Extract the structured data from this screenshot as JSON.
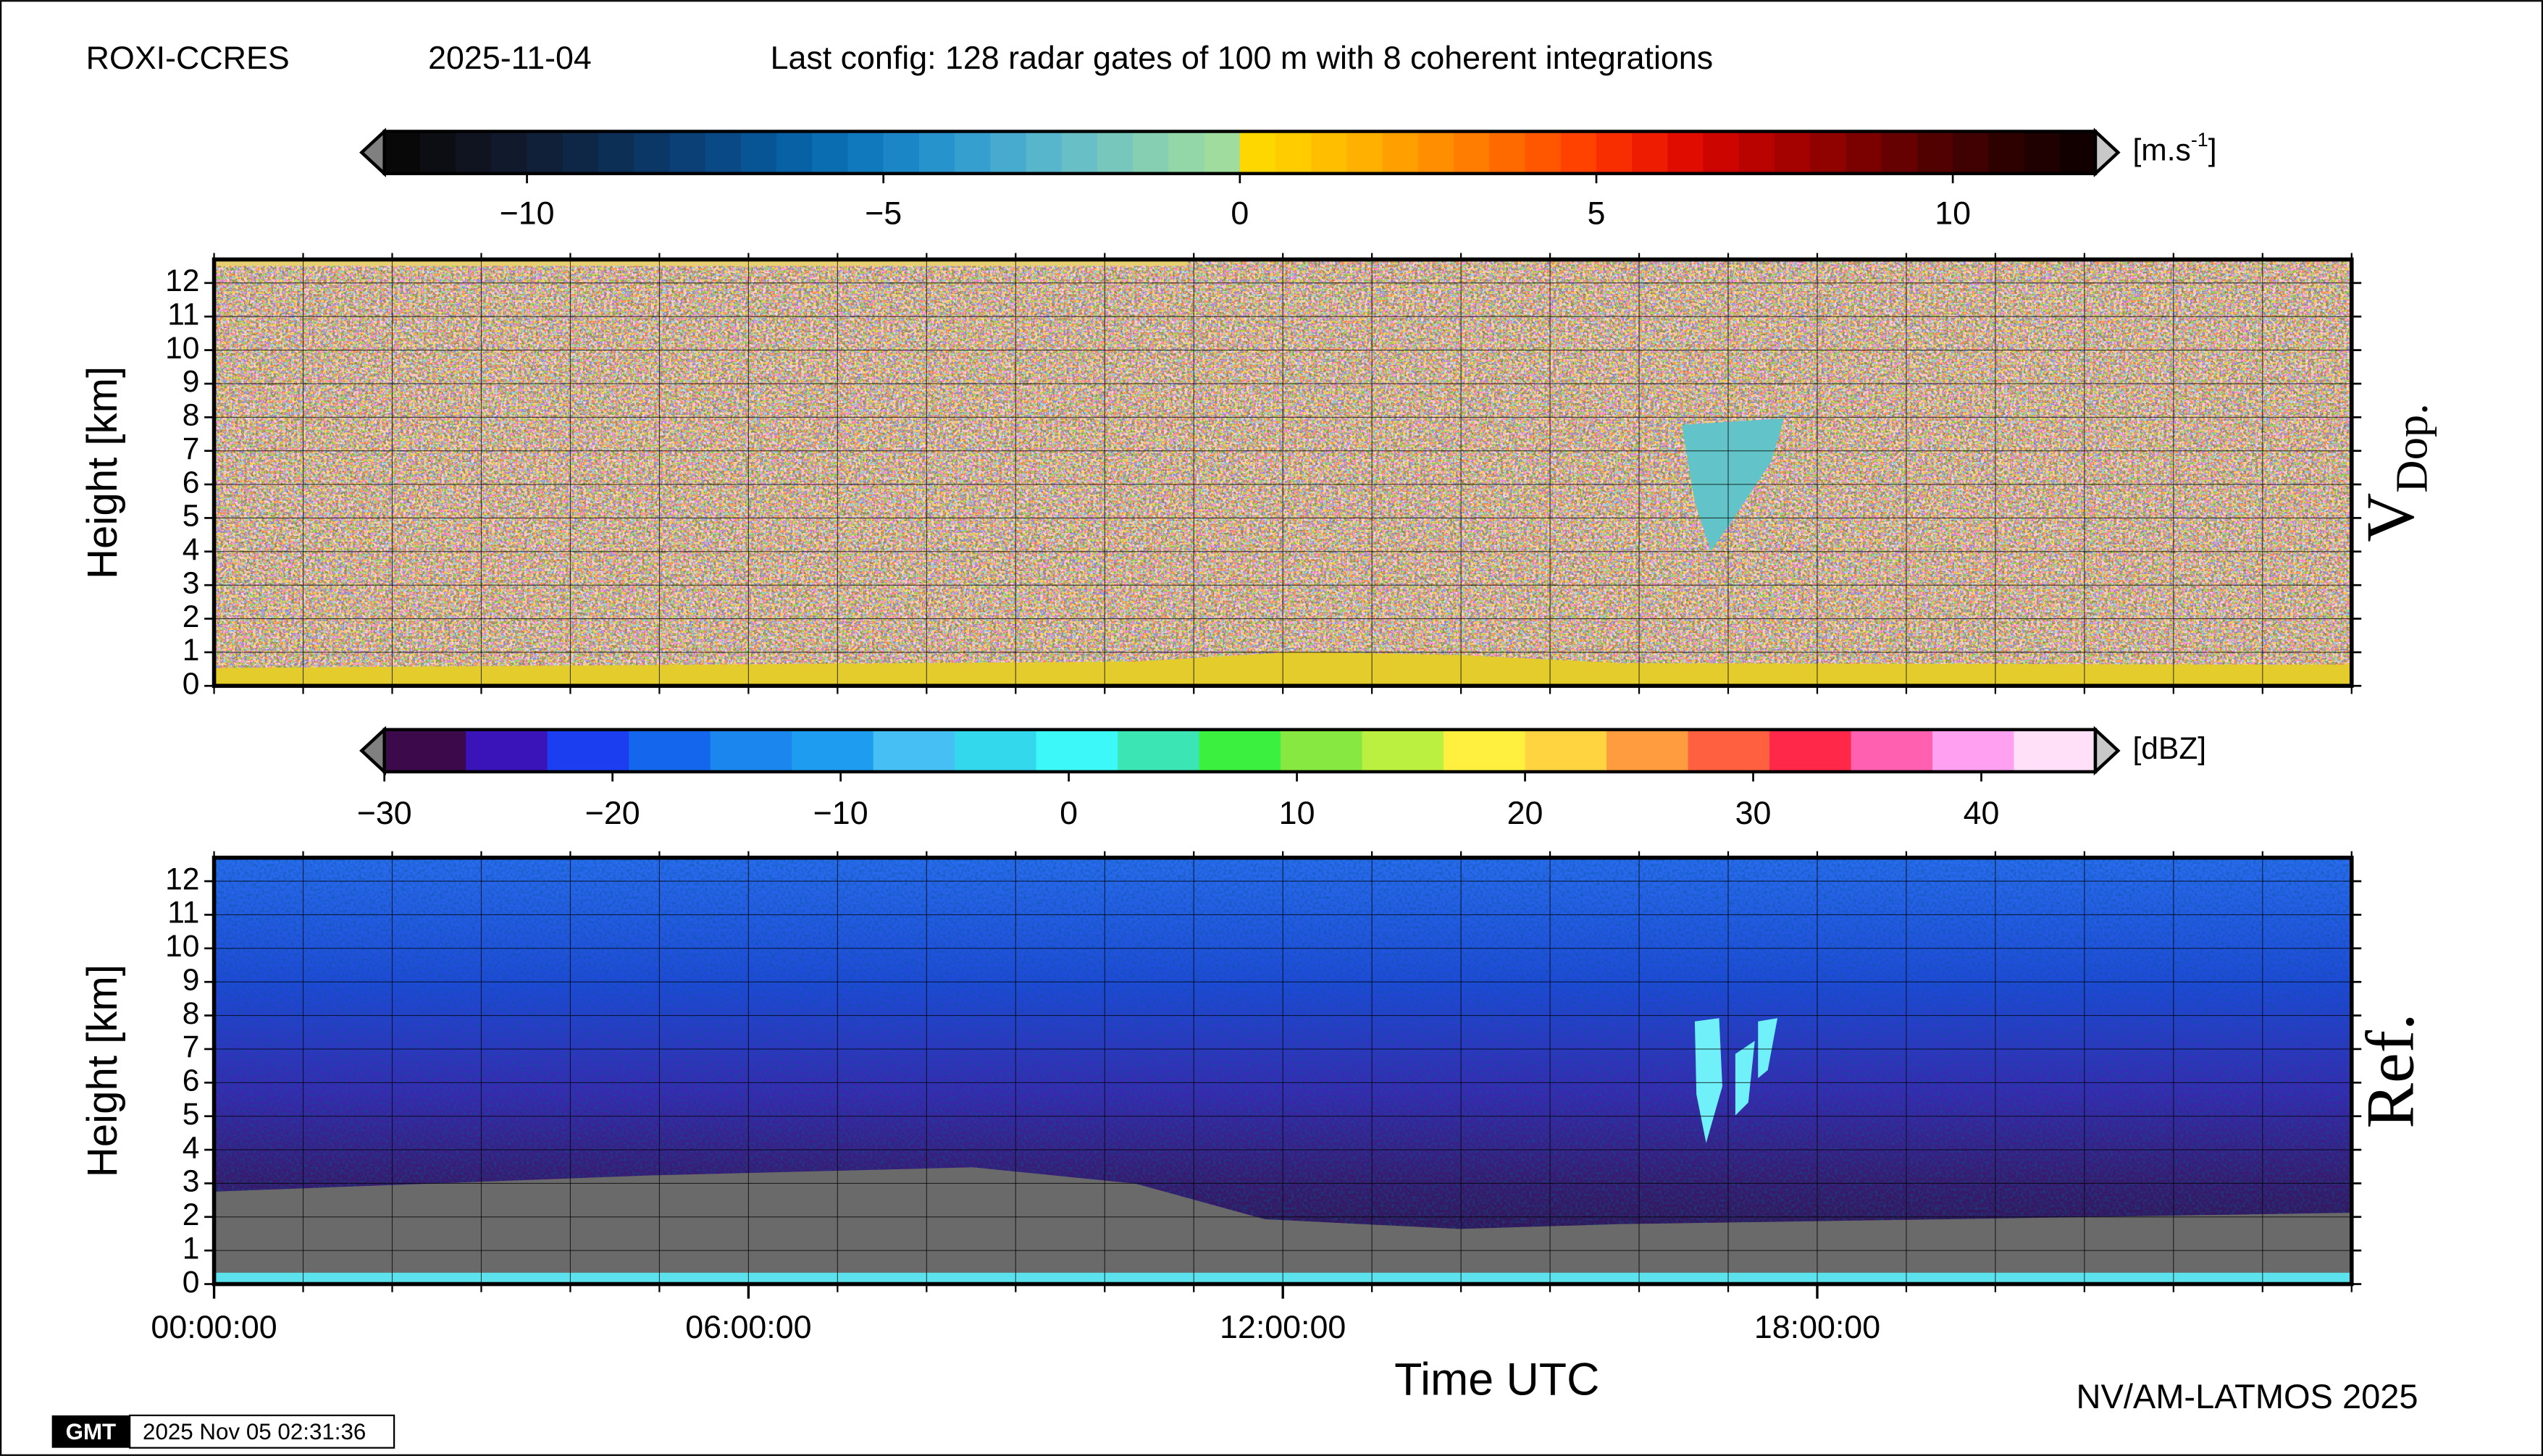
{
  "header": {
    "site": "ROXI-CCRES",
    "date": "2025-11-04",
    "config": "Last config: 128 radar gates of 100 m with 8 coherent integrations"
  },
  "chart_data": [
    {
      "type": "heatmap",
      "side_label": "V",
      "side_label_sub": "Dop.",
      "ylabel": "Height [km]",
      "ylim": [
        0,
        12.7
      ],
      "yticks": [
        0,
        1,
        2,
        3,
        4,
        5,
        6,
        7,
        8,
        9,
        10,
        11,
        12
      ],
      "xlim": [
        0,
        24
      ],
      "xgrid": [
        0,
        1,
        2,
        3,
        4,
        5,
        6,
        7,
        8,
        9,
        10,
        11,
        12,
        13,
        14,
        15,
        16,
        17,
        18,
        19,
        20,
        21,
        22,
        23,
        24
      ],
      "colorbar": {
        "unit": "[m.s",
        "unit_sup": "-1",
        "unit_end": "]",
        "lim": [
          -12,
          12
        ],
        "ticks": [
          {
            "value": -10,
            "label": "−10"
          },
          {
            "value": -5,
            "label": "−5"
          },
          0,
          5,
          10
        ],
        "colors": [
          "#080808",
          "#0c0e14",
          "#0f1420",
          "#111a2c",
          "#0f2038",
          "#0e2746",
          "#0c2f56",
          "#0b3766",
          "#0a4076",
          "#094a86",
          "#085595",
          "#0761a4",
          "#0a6db2",
          "#1079be",
          "#1a86c6",
          "#2693cc",
          "#35a0cf",
          "#46abcf",
          "#58b6cc",
          "#69bfc6",
          "#78c7bd",
          "#86cfb3",
          "#93d6a8",
          "#9fdc9e",
          "#ffd700",
          "#ffcc00",
          "#ffbf00",
          "#ffb000",
          "#ffa000",
          "#ff8f00",
          "#ff7d00",
          "#ff6a00",
          "#ff5600",
          "#ff4200",
          "#f82e00",
          "#ee1c00",
          "#e00c00",
          "#cc0500",
          "#b80300",
          "#a30200",
          "#8f0200",
          "#7a0100",
          "#660101",
          "#520101",
          "#3f0101",
          "#2e0101",
          "#1f0101",
          "#120000"
        ]
      }
    },
    {
      "type": "heatmap",
      "side_label": "Ref.",
      "ylabel": "Height [km]",
      "xlabel": "Time UTC",
      "ylim": [
        0,
        12.7
      ],
      "yticks": [
        0,
        1,
        2,
        3,
        4,
        5,
        6,
        7,
        8,
        9,
        10,
        11,
        12
      ],
      "xlim": [
        0,
        24
      ],
      "xgrid": [
        0,
        1,
        2,
        3,
        4,
        5,
        6,
        7,
        8,
        9,
        10,
        11,
        12,
        13,
        14,
        15,
        16,
        17,
        18,
        19,
        20,
        21,
        22,
        23,
        24
      ],
      "xticks": [
        {
          "value": 0,
          "label": "00:00:00"
        },
        {
          "value": 6,
          "label": "06:00:00"
        },
        {
          "value": 12,
          "label": "12:00:00"
        },
        {
          "value": 18,
          "label": "18:00:00"
        }
      ],
      "colorbar": {
        "unit": "[dBZ]",
        "lim": [
          -30,
          45
        ],
        "ticks": [
          {
            "value": -30,
            "label": "−30"
          },
          {
            "value": -20,
            "label": "−20"
          },
          {
            "value": -10,
            "label": "−10"
          },
          0,
          10,
          20,
          30,
          40
        ],
        "colors": [
          "#3c0a4a",
          "#3a14b8",
          "#1a3ef0",
          "#1466ec",
          "#1b86ee",
          "#1e9cf0",
          "#46c0f4",
          "#34d8ec",
          "#3cf8f8",
          "#3ce6b4",
          "#3cf040",
          "#86e840",
          "#bcf040",
          "#fff040",
          "#ffd440",
          "#ff9c40",
          "#ff6040",
          "#ff2848",
          "#ff60b0",
          "#ffa0f0",
          "#ffe0f8"
        ]
      }
    }
  ],
  "footer": {
    "credit": "NV/AM-LATMOS 2025",
    "logo": "GMT",
    "timestamp": "2025 Nov 05 02:31:36"
  }
}
